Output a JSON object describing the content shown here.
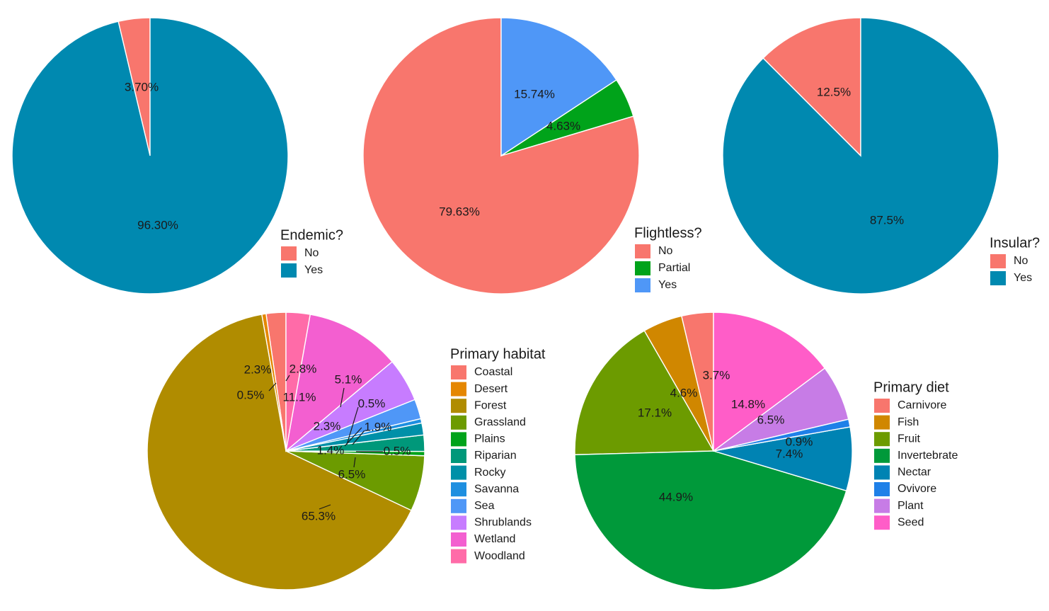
{
  "chart_data": [
    {
      "type": "pie",
      "title": "",
      "legend_title": "Endemic?",
      "categories": [
        "No",
        "Yes"
      ],
      "values": [
        3.7,
        96.3
      ],
      "labels": [
        "3.70%",
        "96.30%"
      ],
      "colors": [
        "#F8766D",
        "#0089B0"
      ],
      "legend_placement": "right"
    },
    {
      "type": "pie",
      "title": "",
      "legend_title": "Flightless?",
      "categories": [
        "No",
        "Partial",
        "Yes"
      ],
      "values": [
        79.63,
        4.63,
        15.74
      ],
      "labels": [
        "79.63%",
        "4.63%",
        "15.74%"
      ],
      "colors": [
        "#F8766D",
        "#00A31A",
        "#4F97F7"
      ],
      "legend_placement": "right"
    },
    {
      "type": "pie",
      "title": "",
      "legend_title": "Insular?",
      "categories": [
        "No",
        "Yes"
      ],
      "values": [
        12.5,
        87.5
      ],
      "labels": [
        "12.5%",
        "87.5%"
      ],
      "colors": [
        "#F8766D",
        "#0089B0"
      ],
      "legend_placement": "right"
    },
    {
      "type": "pie",
      "title": "",
      "legend_title": "Primary habitat",
      "categories": [
        "Coastal",
        "Desert",
        "Forest",
        "Grassland",
        "Plains",
        "Riparian",
        "Rocky",
        "Savanna",
        "Sea",
        "Shrublands",
        "Wetland",
        "Woodland"
      ],
      "values": [
        2.3,
        0.5,
        65.3,
        6.5,
        0.5,
        1.9,
        1.4,
        0.5,
        2.3,
        5.1,
        11.1,
        2.8
      ],
      "labels": [
        "2.3%",
        "0.5%",
        "65.3%",
        "6.5%",
        "0.5%",
        "1.9%",
        "1.4%",
        "0.5%",
        "2.3%",
        "5.1%",
        "11.1%",
        "2.8%"
      ],
      "colors": [
        "#F8766D",
        "#E58700",
        "#B08C00",
        "#6C9B00",
        "#00A31A",
        "#00987A",
        "#0090A8",
        "#1E8FE0",
        "#4F97F7",
        "#C77CFF",
        "#F35FD0",
        "#FF6BA8"
      ],
      "legend_placement": "right"
    },
    {
      "type": "pie",
      "title": "",
      "legend_title": "Primary diet",
      "categories": [
        "Carnivore",
        "Fish",
        "Fruit",
        "Invertebrate",
        "Nectar",
        "Ovivore",
        "Plant",
        "Seed"
      ],
      "values": [
        3.7,
        4.6,
        17.1,
        44.9,
        7.4,
        0.9,
        6.5,
        14.8
      ],
      "labels": [
        "3.7%",
        "4.6%",
        "17.1%",
        "44.9%",
        "7.4%",
        "0.9%",
        "6.5%",
        "14.8%"
      ],
      "colors": [
        "#F8766D",
        "#D08700",
        "#6C9B00",
        "#00993A",
        "#0083B3",
        "#1F80E8",
        "#C77CE6",
        "#FF5DC8"
      ],
      "legend_placement": "right"
    }
  ]
}
